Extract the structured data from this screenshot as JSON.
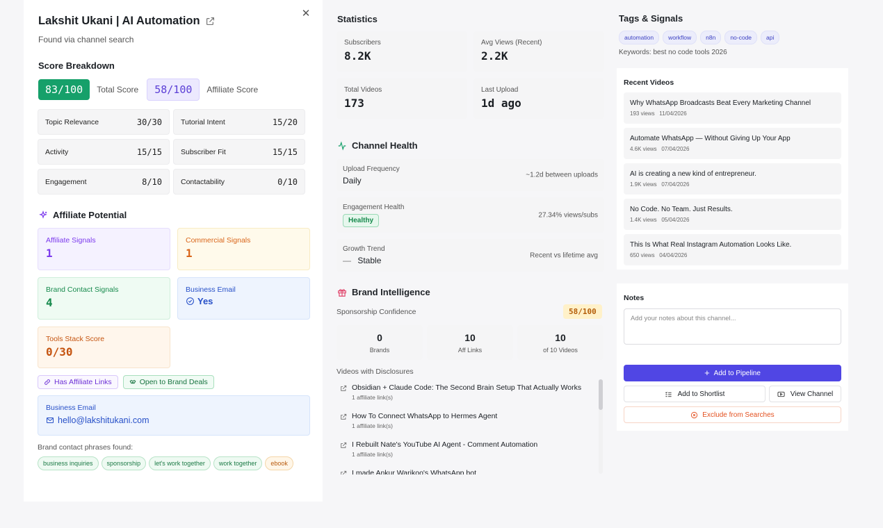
{
  "channel": {
    "name": "Lakshit Ukani | AI Automation",
    "found_via": "Found via channel search",
    "close_icon": "✕"
  },
  "score": {
    "section_title": "Score Breakdown",
    "total": "83/100",
    "total_label": "Total Score",
    "affiliate": "58/100",
    "affiliate_label": "Affiliate Score",
    "breakdown": [
      {
        "label": "Topic Relevance",
        "value": "30/30"
      },
      {
        "label": "Tutorial Intent",
        "value": "15/20"
      },
      {
        "label": "Activity",
        "value": "15/15"
      },
      {
        "label": "Subscriber Fit",
        "value": "15/15"
      },
      {
        "label": "Engagement",
        "value": "8/10"
      },
      {
        "label": "Contactability",
        "value": "0/10"
      }
    ]
  },
  "affiliate": {
    "section_title": "Affiliate Potential",
    "affiliate_signals_label": "Affiliate Signals",
    "affiliate_signals": "1",
    "commercial_signals_label": "Commercial Signals",
    "commercial_signals": "1",
    "brand_contact_label": "Brand Contact Signals",
    "brand_contact": "4",
    "business_email_label": "Business Email",
    "business_email_value": "Yes",
    "tools_stack_label": "Tools Stack Score",
    "tools_stack": "0/30",
    "chip_affiliate": "Has Affiliate Links",
    "chip_brand": "Open to Brand Deals",
    "email_box_label": "Business Email",
    "email": "hello@lakshitukani.com",
    "phrases_label": "Brand contact phrases found:",
    "phrases": [
      "business inquiries",
      "sponsorship",
      "let's work together",
      "work together",
      "ebook"
    ]
  },
  "statistics": {
    "title": "Statistics",
    "subscribers_label": "Subscribers",
    "subscribers": "8.2K",
    "avg_views_label": "Avg Views (Recent)",
    "avg_views": "2.2K",
    "total_videos_label": "Total Videos",
    "total_videos": "173",
    "last_upload_label": "Last Upload",
    "last_upload": "1d ago"
  },
  "health": {
    "title": "Channel Health",
    "upload_label": "Upload Frequency",
    "upload_value": "Daily",
    "upload_right": "~1.2d between uploads",
    "engagement_label": "Engagement Health",
    "engagement_badge": "Healthy",
    "engagement_right": "27.34% views/subs",
    "growth_label": "Growth Trend",
    "growth_value": "Stable",
    "growth_dash": "—",
    "growth_right": "Recent vs lifetime avg"
  },
  "brand": {
    "title": "Brand Intelligence",
    "confidence_label": "Sponsorship Confidence",
    "confidence": "58/100",
    "brands_value": "0",
    "brands_label": "Brands",
    "aff_links_value": "10",
    "aff_links_label": "Aff Links",
    "videos_value": "10",
    "videos_label": "of 10 Videos",
    "disclosures_label": "Videos with Disclosures",
    "disclosures": [
      {
        "title": "Obsidian + Claude Code: The Second Brain Setup That Actually Works",
        "sub": "1 affiliate link(s)"
      },
      {
        "title": "How To Connect WhatsApp to Hermes Agent",
        "sub": "1 affiliate link(s)"
      },
      {
        "title": "I Rebuilt Nate's YouTube AI Agent - Comment Automation",
        "sub": "1 affiliate link(s)"
      },
      {
        "title": "I made Ankur Warikoo's WhatsApp bot",
        "sub": ""
      }
    ]
  },
  "tags": {
    "title": "Tags & Signals",
    "items": [
      "automation",
      "workflow",
      "n8n",
      "no-code",
      "api"
    ],
    "keywords": "Keywords: best no code tools 2026"
  },
  "recent": {
    "title": "Recent Videos",
    "videos": [
      {
        "title": "Why WhatsApp Broadcasts Beat Every Marketing Channel",
        "views": "193 views",
        "date": "11/04/2026"
      },
      {
        "title": "Automate WhatsApp — Without Giving Up Your App",
        "views": "4.6K views",
        "date": "07/04/2026"
      },
      {
        "title": "AI is creating a new kind of entrepreneur.",
        "views": "1.9K views",
        "date": "07/04/2026"
      },
      {
        "title": "No Code. No Team. Just Results.",
        "views": "1.4K views",
        "date": "05/04/2026"
      },
      {
        "title": "This Is What Real Instagram Automation Looks Like.",
        "views": "650 views",
        "date": "04/04/2026"
      }
    ]
  },
  "notes": {
    "title": "Notes",
    "placeholder": "Add your notes about this channel...",
    "add_pipeline": "Add to Pipeline",
    "add_shortlist": "Add to Shortlist",
    "view_channel": "View Channel",
    "exclude": "Exclude from Searches"
  },
  "colors": {
    "accent": "#5046e4",
    "total_score": "#16a06a",
    "warning": "#e3501f"
  }
}
